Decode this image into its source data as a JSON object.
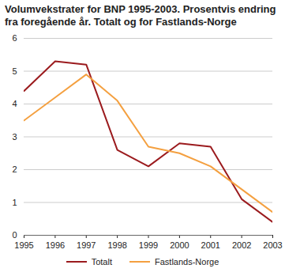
{
  "chart_data": {
    "type": "line",
    "title": "Volumvekstrater for BNP 1995-2003. Prosentvis endring fra foregående år. Totalt og for Fastlands-Norge",
    "x": [
      1995,
      1996,
      1997,
      1998,
      1999,
      2000,
      2001,
      2002,
      2003
    ],
    "series": [
      {
        "name": "Totalt",
        "color": "#9b1b1e",
        "values": [
          4.4,
          5.3,
          5.2,
          2.6,
          2.1,
          2.8,
          2.7,
          1.1,
          0.4
        ]
      },
      {
        "name": "Fastlands-Norge",
        "color": "#f4a040",
        "values": [
          3.5,
          4.2,
          4.9,
          4.1,
          2.7,
          2.5,
          2.1,
          1.4,
          0.7
        ]
      }
    ],
    "xlim": [
      1995,
      2003
    ],
    "xticks": [
      1995,
      1996,
      1997,
      1998,
      1999,
      2000,
      2001,
      2002,
      2003
    ],
    "ylim": [
      0,
      6
    ],
    "yticks": [
      0,
      1,
      2,
      3,
      4,
      5,
      6
    ],
    "grid": true,
    "legend": "bottom"
  }
}
